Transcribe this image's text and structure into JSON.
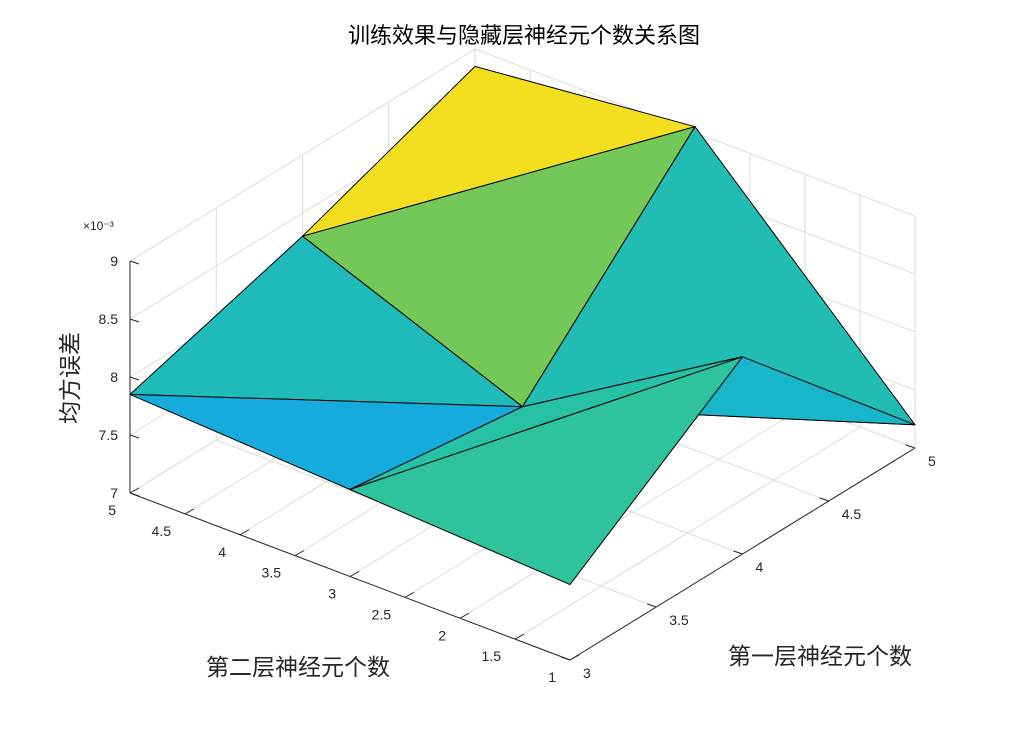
{
  "chart_data": {
    "type": "surface3d",
    "title": "训练效果与隐藏层神经元个数关系图",
    "xlabel": "第一层神经元个数",
    "ylabel": "第二层神经元个数",
    "zlabel": "均方误差",
    "z_exponent_label": "×10⁻³",
    "x": [
      3,
      4,
      5
    ],
    "y": [
      1,
      3,
      5
    ],
    "z": [
      [
        7.65,
        7.75,
        7.85
      ],
      [
        8.7,
        7.55,
        8.3
      ],
      [
        7.2,
        9.05,
        8.85
      ]
    ],
    "z_units_scale": 0.001,
    "xlim": [
      3,
      5
    ],
    "ylim": [
      1,
      5
    ],
    "zlim": [
      7,
      9
    ],
    "x_ticks": [
      "3",
      "3.5",
      "4",
      "4.5",
      "5"
    ],
    "y_ticks": [
      "1",
      "1.5",
      "2",
      "2.5",
      "3",
      "3.5",
      "4",
      "4.5",
      "5"
    ],
    "z_ticks": [
      "7",
      "7.5",
      "8",
      "8.5",
      "9"
    ],
    "x_tick_values": [
      3,
      3.5,
      4,
      4.5,
      5
    ],
    "y_tick_values": [
      1,
      1.5,
      2,
      2.5,
      3,
      3.5,
      4,
      4.5,
      5
    ],
    "z_tick_values": [
      7,
      7.5,
      8,
      8.5,
      9
    ],
    "grid": true,
    "colormap": "parula",
    "colormap_stops": [
      "#3e26a8",
      "#4353f5",
      "#2f82fa",
      "#12b1d8",
      "#27c2a6",
      "#5fc962",
      "#c3c230",
      "#f6e11f",
      "#f9fb15"
    ]
  }
}
